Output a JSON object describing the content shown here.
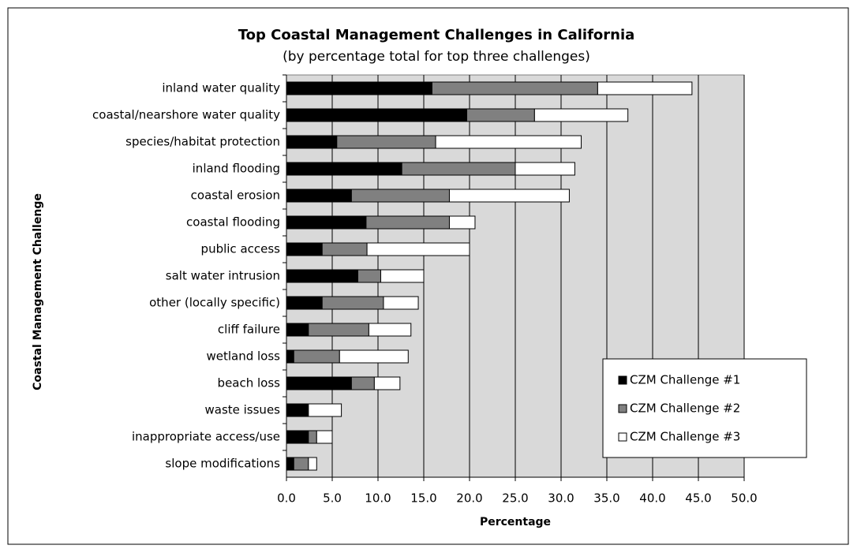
{
  "chart_data": {
    "type": "stacked-barh",
    "title": "Top Coastal Management Challenges in California",
    "subtitle": "(by percentage total for top three challenges)",
    "x_label": "Percentage",
    "y_label": "Coastal Management Challenge",
    "categories": [
      "inland water quality",
      "coastal/nearshore water quality",
      "species/habitat protection",
      "inland flooding",
      "coastal erosion",
      "coastal flooding",
      "public access",
      "salt water intrusion",
      "other (locally specific)",
      "cliff failure",
      "wetland loss",
      "beach loss",
      "waste issues",
      "inappropriate access/use",
      "slope modifications"
    ],
    "series": [
      {
        "name": "CZM Challenge #1",
        "color": "#000000",
        "values": [
          15.9,
          19.7,
          5.5,
          12.6,
          7.1,
          8.7,
          3.9,
          7.8,
          3.9,
          2.4,
          0.8,
          7.1,
          2.4,
          2.4,
          0.8
        ]
      },
      {
        "name": "CZM Challenge #2",
        "color": "#808080",
        "values": [
          18.1,
          7.4,
          10.8,
          12.4,
          10.7,
          9.1,
          4.9,
          2.5,
          6.7,
          6.6,
          5.0,
          2.5,
          0,
          0.9,
          1.6
        ]
      },
      {
        "name": "CZM Challenge #3",
        "color": "#ffffff",
        "values": [
          10.3,
          10.2,
          15.9,
          6.5,
          13.1,
          2.8,
          11.2,
          4.7,
          3.8,
          4.6,
          7.5,
          2.8,
          3.6,
          1.7,
          0.9
        ]
      }
    ],
    "xlim": [
      0,
      50
    ],
    "xticks": [
      {
        "value": 0,
        "label": "0.0"
      },
      {
        "value": 5,
        "label": "5.0"
      },
      {
        "value": 10,
        "label": "10.0"
      },
      {
        "value": 15,
        "label": "15.0"
      },
      {
        "value": 20,
        "label": "20.0"
      },
      {
        "value": 25,
        "label": "25.0"
      },
      {
        "value": 30,
        "label": "30.0"
      },
      {
        "value": 35,
        "label": "35.0"
      },
      {
        "value": 40,
        "label": "40.0"
      },
      {
        "value": 45,
        "label": "45.0"
      },
      {
        "value": 50,
        "label": "50.0"
      }
    ],
    "grid": true,
    "legend": "lower right"
  }
}
